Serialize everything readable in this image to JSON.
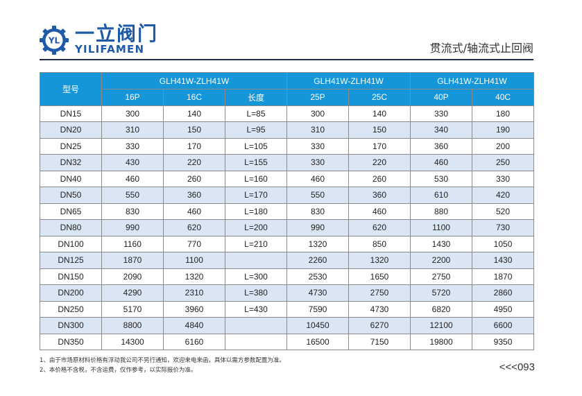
{
  "brand": {
    "name_cn": "一立阀门",
    "name_en": "YILIFAMEN",
    "mark_text": "YL",
    "color": "#1e5aa8"
  },
  "page_title": "贯流式/轴流式止回阀",
  "table": {
    "header_color": "#1596d8",
    "alt_row_color": "#dbe6f5",
    "model_label": "型号",
    "groups": [
      "GLH41W-ZLH41W",
      "GLH41W-ZLH41W",
      "GLH41W-ZLH41W"
    ],
    "subheaders": [
      "16P",
      "16C",
      "长度",
      "25P",
      "25C",
      "40P",
      "40C"
    ],
    "rows": [
      [
        "DN15",
        "300",
        "140",
        "L=85",
        "300",
        "140",
        "330",
        "180"
      ],
      [
        "DN20",
        "310",
        "150",
        "L=95",
        "310",
        "150",
        "340",
        "190"
      ],
      [
        "DN25",
        "330",
        "170",
        "L=105",
        "330",
        "170",
        "360",
        "200"
      ],
      [
        "DN32",
        "430",
        "220",
        "L=155",
        "330",
        "220",
        "460",
        "250"
      ],
      [
        "DN40",
        "460",
        "260",
        "L=160",
        "460",
        "260",
        "530",
        "330"
      ],
      [
        "DN50",
        "550",
        "360",
        "L=170",
        "550",
        "360",
        "610",
        "420"
      ],
      [
        "DN65",
        "830",
        "460",
        "L=180",
        "830",
        "460",
        "880",
        "520"
      ],
      [
        "DN80",
        "990",
        "620",
        "L=200",
        "990",
        "620",
        "1100",
        "730"
      ],
      [
        "DN100",
        "1160",
        "770",
        "L=210",
        "1320",
        "850",
        "1430",
        "1050"
      ],
      [
        "DN125",
        "1870",
        "1100",
        "",
        "2260",
        "1320",
        "2200",
        "1430"
      ],
      [
        "DN150",
        "2090",
        "1320",
        "L=300",
        "2530",
        "1650",
        "2750",
        "1870"
      ],
      [
        "DN200",
        "4290",
        "2310",
        "L=380",
        "4730",
        "2750",
        "5720",
        "2860"
      ],
      [
        "DN250",
        "5170",
        "3960",
        "L=430",
        "7590",
        "4730",
        "6820",
        "4950"
      ],
      [
        "DN300",
        "8800",
        "4840",
        "",
        "10450",
        "6270",
        "12100",
        "6600"
      ],
      [
        "DN350",
        "14300",
        "6160",
        "",
        "16500",
        "7150",
        "19800",
        "9350"
      ]
    ]
  },
  "notes": [
    "1、由于市场原材料价格有浮动我公司不另行通知，欢迎来电来函，具体以需方参数配置为准。",
    "2、本价格不含税，不含运费，仅作参考，以实际报价为准。"
  ],
  "page_number": "<<<093"
}
